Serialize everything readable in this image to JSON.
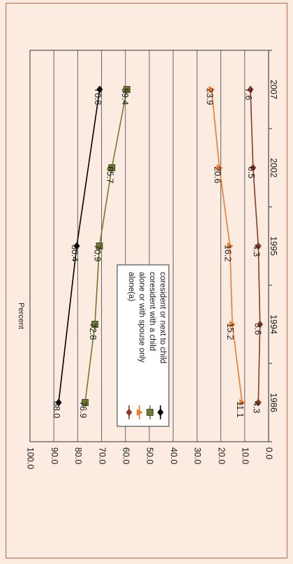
{
  "chart_data": {
    "type": "line",
    "orientation": "rotated-90-clockwise",
    "categories": [
      "1986",
      "1994",
      "1995",
      "2002",
      "2007"
    ],
    "ylabel": "Percent",
    "ylim": [
      0,
      100
    ],
    "yticks": [
      "0.0",
      "10.0",
      "20.0",
      "30.0",
      "40.0",
      "50.0",
      "60.0",
      "70.0",
      "80.0",
      "90.0",
      "100.0"
    ],
    "grid": true,
    "legend_position": "center",
    "series": [
      {
        "name": "coresident or next to child",
        "color": "#000000",
        "marker": "diamond",
        "x": [
          "1986",
          "1995",
          "2007"
        ],
        "values": [
          88.0,
          80.4,
          70.8
        ],
        "labels": [
          "88.0",
          "80.4",
          "70.8"
        ]
      },
      {
        "name": "coresident with a child",
        "color": "#6b7d2a",
        "marker": "square",
        "x": [
          "1986",
          "1994",
          "1995",
          "2002",
          "2007"
        ],
        "values": [
          76.9,
          72.8,
          70.9,
          65.7,
          59.4
        ],
        "labels": [
          "76.9",
          "72.8",
          "70.9",
          "65.7",
          "59.4"
        ]
      },
      {
        "name": "alone or with spouse only",
        "color": "#ee7a2e",
        "marker": "triangle",
        "x": [
          "1986",
          "1994",
          "1995",
          "2002",
          "2007"
        ],
        "values": [
          11.1,
          15.2,
          16.2,
          20.6,
          23.9
        ],
        "labels": [
          "11.1",
          "15.2",
          "16.2",
          "20.6",
          "23.9"
        ]
      },
      {
        "name": "alone(a)",
        "color": "#8b3a26",
        "marker": "diamond",
        "x": [
          "1986",
          "1994",
          "1995",
          "2002",
          "2007"
        ],
        "values": [
          4.3,
          3.6,
          4.3,
          6.5,
          7.6
        ],
        "labels": [
          "4.3",
          "3.6",
          "4.3",
          "6.5",
          "7.6"
        ]
      }
    ]
  }
}
